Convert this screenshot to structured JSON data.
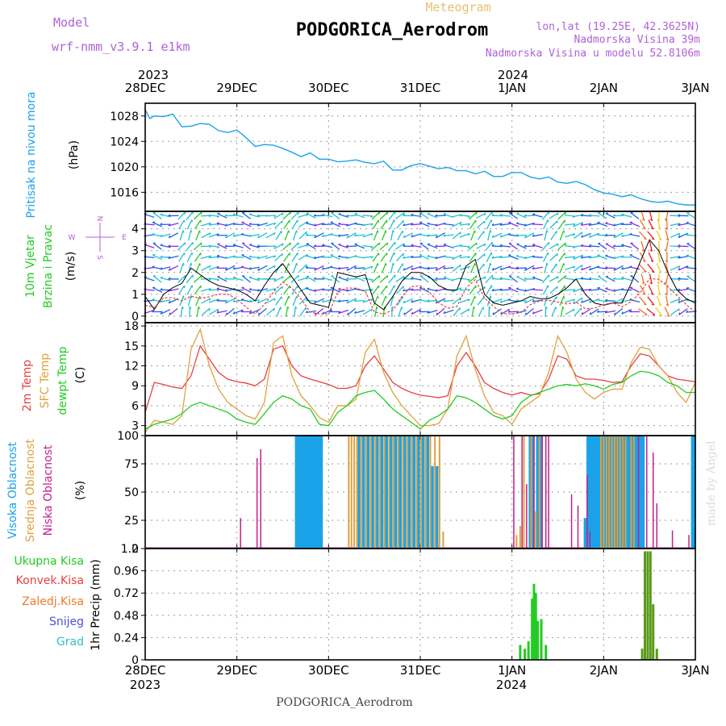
{
  "header": {
    "meteogram_label": "Meteogram",
    "station_title": "PODGORICA_Aerodrom",
    "model_label": "Model",
    "model_name": "wrf-nmm_v3.9.1 e1km",
    "location": "lon,lat (19.25E, 42.3625N)",
    "elevation": "Nadmorska Visina 39m",
    "model_elevation": "Nadmorska Visina u modelu 52.8106m",
    "bottom_title": "PODGORICA_Aerodrom",
    "watermark": "made by Angel"
  },
  "time_axis": {
    "day_labels": [
      "28DEC",
      "29DEC",
      "30DEC",
      "31DEC",
      "1JAN",
      "2JAN",
      "3JAN"
    ],
    "year_top_left": "2023",
    "year_top_mid": "2024",
    "year_bottom_left": "2023",
    "year_bottom_mid": "2024"
  },
  "panel_labels": {
    "pressure": [
      "Pritisak na nivou mora",
      "(hPa)"
    ],
    "wind": [
      "10m Vjetar",
      "Brzina i Pravac",
      "(m/s)"
    ],
    "compass": {
      "n": "N",
      "s": "S",
      "e": "E",
      "w": "W"
    },
    "temp": [
      "2m Temp",
      "SFC Temp",
      "dewpt Temp",
      "(C)"
    ],
    "cloud": [
      "Visoka Oblacnost",
      "Srednja Oblacnost",
      "Niska Oblacnost",
      "(%)"
    ],
    "precip": [
      "Ukupna Kisa",
      "Konvek.Kisa",
      "Zaledj.Kisa",
      "Snijeg",
      "Grad",
      "1hr Precip (mm)"
    ]
  },
  "colors": {
    "pressure": "#1aa3e8",
    "t2m": "#e84040",
    "tsfc": "#e0a040",
    "dewpt": "#22cc22",
    "cloud_high": "#1aa3e8",
    "cloud_mid": "#e0a040",
    "cloud_low": "#c0208c",
    "precip_total": "#22cc22",
    "precip_conv": "#e84040",
    "precip_frz": "#f07a2a",
    "snow": "#5050e8",
    "grad": "#30c0c0",
    "label_purple": "#b060d8",
    "meteogram_gold": "#e8c070"
  },
  "chart_data": [
    {
      "id": "pressure",
      "type": "line",
      "ylabel": "(hPa)",
      "ylim": [
        1013,
        1030
      ],
      "yticks": [
        1016,
        1020,
        1024,
        1028
      ],
      "x_unit": "days since 28DEC 00Z",
      "x": [
        0,
        0.05,
        0.1,
        0.2,
        0.3,
        0.4,
        0.5,
        0.6,
        0.7,
        0.8,
        0.9,
        1.0,
        1.1,
        1.2,
        1.3,
        1.4,
        1.5,
        1.6,
        1.7,
        1.8,
        1.9,
        2.0,
        2.1,
        2.2,
        2.3,
        2.4,
        2.5,
        2.6,
        2.7,
        2.8,
        2.9,
        3.0,
        3.1,
        3.2,
        3.3,
        3.4,
        3.5,
        3.6,
        3.7,
        3.8,
        3.9,
        4.0,
        4.1,
        4.2,
        4.3,
        4.4,
        4.5,
        4.6,
        4.7,
        4.8,
        4.9,
        5.0,
        5.1,
        5.2,
        5.3,
        5.4,
        5.5,
        5.6,
        5.7,
        5.8,
        5.9,
        6.0
      ],
      "values": [
        1029,
        1027.6,
        1028,
        1027.9,
        1028.3,
        1026.3,
        1026.4,
        1026.8,
        1026.7,
        1025.7,
        1025.4,
        1025.8,
        1024.6,
        1023.2,
        1023.5,
        1023.4,
        1022.9,
        1022.3,
        1021.6,
        1022.2,
        1021.2,
        1021.2,
        1020.8,
        1020.9,
        1021.1,
        1020.7,
        1020.5,
        1020.9,
        1019.5,
        1019.5,
        1020.2,
        1020.5,
        1020.1,
        1019.7,
        1019.9,
        1019.4,
        1019.4,
        1018.9,
        1019.3,
        1018.5,
        1018.5,
        1019.1,
        1019.1,
        1018.4,
        1018.1,
        1018.4,
        1017.6,
        1017.4,
        1017.7,
        1017.2,
        1016.4,
        1015.9,
        1015.7,
        1015.3,
        1015.6,
        1015.0,
        1014.6,
        1014.4,
        1014.6,
        1014.2,
        1014.0,
        1014.0
      ]
    },
    {
      "id": "wind",
      "type": "line",
      "ylabel": "(m/s)",
      "ylim": [
        -0.3,
        4.8
      ],
      "yticks": [
        0,
        1,
        2,
        3,
        4
      ],
      "x_unit": "days since 28DEC 00Z",
      "series": [
        {
          "name": "speed",
          "x": [
            0,
            0.1,
            0.2,
            0.3,
            0.4,
            0.5,
            0.6,
            0.7,
            0.8,
            0.9,
            1.0,
            1.1,
            1.2,
            1.3,
            1.4,
            1.5,
            1.6,
            1.7,
            1.8,
            1.9,
            2.0,
            2.1,
            2.2,
            2.3,
            2.4,
            2.5,
            2.6,
            2.7,
            2.8,
            2.9,
            3.0,
            3.1,
            3.2,
            3.3,
            3.4,
            3.5,
            3.6,
            3.7,
            3.8,
            3.9,
            4.0,
            4.1,
            4.2,
            4.3,
            4.4,
            4.5,
            4.6,
            4.7,
            4.8,
            4.9,
            5.0,
            5.1,
            5.2,
            5.3,
            5.4,
            5.5,
            5.6,
            5.7,
            5.8,
            5.9,
            6.0
          ],
          "values": [
            0.9,
            0.3,
            1.0,
            1.3,
            1.5,
            2.2,
            1.9,
            1.6,
            1.4,
            1.3,
            1.2,
            1.0,
            0.7,
            1.4,
            2.0,
            2.4,
            1.8,
            1.2,
            0.6,
            0.5,
            0.4,
            2.0,
            1.9,
            1.8,
            1.9,
            0.6,
            0.3,
            0.9,
            1.6,
            2.0,
            2.0,
            1.8,
            1.4,
            1.2,
            1.2,
            2.3,
            2.6,
            1.0,
            0.6,
            0.5,
            0.6,
            0.7,
            0.9,
            0.8,
            0.8,
            1.0,
            1.3,
            1.7,
            1.0,
            0.6,
            0.5,
            0.6,
            0.6,
            1.5,
            2.5,
            3.5,
            3.0,
            2.0,
            1.2,
            0.8,
            0.6
          ]
        }
      ],
      "arrow_colors": [
        "#8a2be2",
        "#1e63e8",
        "#20c0d0",
        "#22cc22",
        "#e8d020",
        "#f07020",
        "#e82020"
      ]
    },
    {
      "id": "temperature",
      "type": "line",
      "ylabel": "(C)",
      "ylim": [
        1.5,
        18.5
      ],
      "yticks": [
        3,
        6,
        9,
        12,
        15,
        18
      ],
      "x_unit": "days since 28DEC 00Z",
      "series": [
        {
          "name": "2m Temp",
          "values": [
            5.0,
            9.5,
            9.2,
            8.8,
            8.6,
            10.5,
            15.0,
            13.0,
            11.0,
            10.0,
            9.6,
            9.4,
            9.0,
            10.0,
            14.5,
            15.0,
            12.0,
            10.5,
            10.0,
            9.6,
            9.2,
            8.6,
            8.6,
            9.0,
            12.0,
            13.5,
            11.5,
            9.5,
            8.6,
            8.0,
            7.6,
            7.4,
            7.2,
            7.5,
            12.0,
            14.0,
            12.0,
            9.5,
            8.6,
            8.0,
            7.6,
            8.0,
            7.6,
            7.8,
            10.0,
            13.5,
            13.0,
            10.5,
            10.0,
            10.0,
            9.8,
            9.5,
            9.6,
            12.0,
            13.8,
            13.5,
            12.0,
            10.5,
            10.0,
            9.8,
            9.6
          ]
        },
        {
          "name": "SFC Temp",
          "values": [
            2.0,
            3.8,
            3.5,
            3.2,
            4.5,
            14.5,
            17.5,
            12.0,
            8.5,
            6.5,
            5.5,
            4.5,
            4.0,
            6.5,
            15.5,
            16.5,
            10.5,
            7.5,
            6.0,
            4.2,
            3.5,
            6.0,
            6.0,
            7.0,
            14.0,
            16.0,
            11.0,
            8.0,
            6.0,
            4.5,
            3.0,
            3.0,
            3.3,
            5.5,
            13.5,
            16.5,
            11.5,
            7.5,
            5.0,
            4.5,
            3.2,
            5.5,
            6.5,
            7.5,
            11.0,
            16.5,
            14.0,
            10.0,
            8.0,
            7.0,
            8.0,
            8.5,
            8.5,
            12.5,
            14.8,
            14.5,
            12.0,
            10.5,
            8.0,
            6.5,
            9.5
          ]
        },
        {
          "name": "dewpt Temp",
          "values": [
            2.5,
            3.2,
            3.6,
            4.0,
            4.8,
            6.0,
            6.5,
            6.0,
            5.5,
            5.0,
            4.0,
            3.5,
            3.2,
            4.8,
            6.5,
            7.5,
            7.0,
            6.0,
            5.5,
            3.2,
            3.0,
            5.0,
            6.0,
            7.5,
            8.0,
            8.3,
            7.0,
            5.5,
            4.5,
            3.5,
            2.5,
            3.8,
            4.5,
            5.5,
            7.5,
            7.2,
            6.5,
            5.5,
            4.5,
            4.0,
            4.5,
            6.5,
            7.5,
            8.0,
            8.5,
            9.0,
            9.2,
            9.0,
            9.3,
            9.0,
            8.5,
            9.2,
            9.5,
            10.5,
            11.2,
            11.0,
            10.5,
            9.5,
            9.0,
            8.0,
            8.0
          ]
        }
      ]
    },
    {
      "id": "cloud",
      "type": "bar",
      "ylabel": "(%)",
      "ylim": [
        0,
        100
      ],
      "yticks": [
        0,
        25,
        50,
        75,
        100
      ],
      "x_unit": "days since 28DEC 00Z",
      "series": [
        {
          "name": "Visoka Oblacnost",
          "x": [
            1.65,
            1.68,
            1.71,
            1.74,
            1.77,
            1.8,
            1.83,
            1.86,
            1.89,
            1.92,
            2.33,
            2.38,
            2.43,
            2.48,
            2.53,
            2.58,
            2.63,
            2.68,
            2.73,
            2.78,
            2.83,
            2.88,
            2.93,
            2.98,
            3.03,
            3.08,
            3.13,
            3.18,
            4.2,
            4.23,
            4.28,
            4.31,
            4.8,
            4.83,
            4.86,
            4.89,
            4.92,
            4.95,
            4.98,
            5.01,
            5.04,
            5.07,
            5.1,
            5.13,
            5.16,
            5.19,
            5.22,
            5.25,
            5.28,
            5.31,
            5.34,
            5.37,
            5.4,
            5.43,
            5.97,
            5.99
          ],
          "values": [
            100,
            100,
            100,
            100,
            100,
            100,
            100,
            100,
            100,
            100,
            100,
            100,
            100,
            100,
            100,
            100,
            100,
            100,
            100,
            100,
            100,
            100,
            100,
            100,
            100,
            100,
            73,
            73,
            100,
            100,
            100,
            100,
            27,
            100,
            100,
            100,
            100,
            100,
            100,
            100,
            100,
            100,
            100,
            100,
            100,
            100,
            100,
            100,
            100,
            100,
            100,
            100,
            100,
            100,
            100,
            100
          ]
        },
        {
          "name": "Srednja Oblacnost",
          "x": [
            2.22,
            2.25,
            2.28,
            2.31,
            2.36,
            2.41,
            2.46,
            2.51,
            2.56,
            2.61,
            2.66,
            2.71,
            2.76,
            2.81,
            2.86,
            2.91,
            2.96,
            3.01,
            3.06,
            3.11,
            3.16,
            3.21,
            3.25,
            4.05,
            4.09,
            4.13,
            4.21,
            4.26,
            4.3,
            4.97,
            5.0,
            5.03,
            5.06,
            5.09,
            5.12,
            5.15,
            5.18,
            5.21,
            5.24,
            5.3,
            5.33
          ],
          "values": [
            100,
            100,
            100,
            100,
            100,
            100,
            100,
            100,
            100,
            100,
            100,
            100,
            100,
            100,
            100,
            100,
            100,
            100,
            100,
            100,
            100,
            100,
            15,
            12,
            20,
            100,
            100,
            33,
            100,
            100,
            100,
            100,
            100,
            100,
            100,
            100,
            100,
            100,
            100,
            100,
            100
          ]
        },
        {
          "name": "Niska Oblacnost",
          "x": [
            1.04,
            1.22,
            1.26,
            4.02,
            4.11,
            4.16,
            4.24,
            4.33,
            4.37,
            4.4,
            4.65,
            4.72,
            4.82,
            4.85,
            5.38,
            5.47,
            5.54,
            5.58,
            5.75,
            5.93
          ],
          "values": [
            27,
            80,
            88,
            100,
            100,
            57,
            100,
            100,
            100,
            100,
            48,
            38,
            65,
            15,
            100,
            100,
            85,
            40,
            16,
            12
          ]
        }
      ]
    },
    {
      "id": "precip",
      "type": "bar",
      "ylabel": "1hr Precip (mm)",
      "ylim": [
        0,
        1.2
      ],
      "yticks": [
        0,
        0.24,
        0.48,
        0.72,
        0.96,
        1.2
      ],
      "x_unit": "days since 28DEC 00Z",
      "series": [
        {
          "name": "Ukupna Kisa",
          "color": "#22cc22",
          "x": [
            4.09,
            4.14,
            4.18,
            4.22,
            4.24,
            4.26,
            4.28,
            4.32,
            4.37
          ],
          "values": [
            0.16,
            0.12,
            0.2,
            0.66,
            0.82,
            0.72,
            0.42,
            0.44,
            0.16
          ]
        },
        {
          "name": "Ukupna Kisa (late)",
          "color": "#5a9a1a",
          "x": [
            5.42,
            5.45,
            5.48,
            5.51,
            5.54,
            5.58
          ],
          "values": [
            0.12,
            1.17,
            1.17,
            1.17,
            0.6,
            0.12
          ]
        }
      ]
    }
  ]
}
